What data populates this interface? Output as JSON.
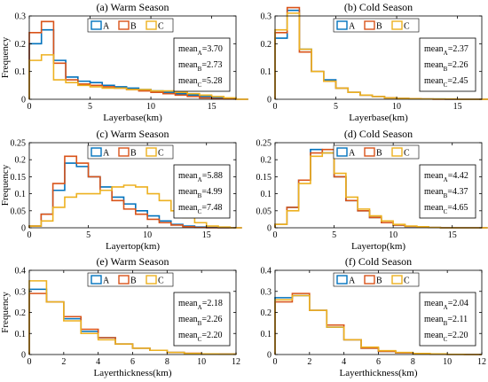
{
  "figure": {
    "background": "#ffffff"
  },
  "legend_colors": {
    "A": "#0072BD",
    "B": "#D95319",
    "C": "#EDB120"
  },
  "chart_data": [
    {
      "type": "line",
      "title": "(a) Warm Season",
      "xlabel": "Layerbase(km)",
      "ylabel": "Frequency",
      "xlim": [
        0,
        17
      ],
      "ylim": [
        0,
        0.3
      ],
      "xticks": [
        0,
        5,
        10,
        15
      ],
      "yticks": [
        0,
        0.1,
        0.2,
        0.3
      ],
      "grid": false,
      "legend_location": "top-center",
      "bin_width": 1,
      "series": [
        {
          "name": "A",
          "color": "#0072BD",
          "values": [
            0.2,
            0.25,
            0.14,
            0.08,
            0.065,
            0.06,
            0.05,
            0.045,
            0.04,
            0.035,
            0.03,
            0.025,
            0.02,
            0.015,
            0.01,
            0.005,
            0.002,
            0
          ]
        },
        {
          "name": "B",
          "color": "#D95319",
          "values": [
            0.24,
            0.28,
            0.13,
            0.07,
            0.055,
            0.05,
            0.045,
            0.04,
            0.035,
            0.03,
            0.025,
            0.02,
            0.015,
            0.01,
            0.005,
            0.002,
            0.001,
            0
          ]
        },
        {
          "name": "C",
          "color": "#EDB120",
          "values": [
            0.14,
            0.16,
            0.07,
            0.06,
            0.05,
            0.045,
            0.04,
            0.04,
            0.035,
            0.035,
            0.03,
            0.03,
            0.025,
            0.02,
            0.015,
            0.01,
            0.005,
            0
          ]
        }
      ],
      "means": {
        "A": "=3.70",
        "B": "=2.73",
        "C": "=5.28"
      }
    },
    {
      "type": "line",
      "title": "(b) Cold Season",
      "xlabel": "Layerbase(km)",
      "ylabel": "",
      "xlim": [
        0,
        17
      ],
      "ylim": [
        0,
        0.3
      ],
      "xticks": [
        0,
        5,
        10,
        15
      ],
      "yticks": [
        0,
        0.1,
        0.2,
        0.3
      ],
      "grid": false,
      "legend_location": "top-center",
      "bin_width": 1,
      "series": [
        {
          "name": "A",
          "color": "#0072BD",
          "values": [
            0.22,
            0.32,
            0.18,
            0.1,
            0.07,
            0.04,
            0.025,
            0.015,
            0.01,
            0.005,
            0.003,
            0.002,
            0.001,
            0.001,
            0,
            0,
            0,
            0
          ]
        },
        {
          "name": "B",
          "color": "#D95319",
          "values": [
            0.24,
            0.33,
            0.17,
            0.1,
            0.065,
            0.04,
            0.025,
            0.015,
            0.01,
            0.005,
            0.003,
            0.002,
            0.001,
            0,
            0,
            0,
            0,
            0
          ]
        },
        {
          "name": "C",
          "color": "#EDB120",
          "values": [
            0.25,
            0.31,
            0.18,
            0.1,
            0.065,
            0.04,
            0.025,
            0.015,
            0.01,
            0.005,
            0.003,
            0.002,
            0.001,
            0.001,
            0.001,
            0,
            0,
            0
          ]
        }
      ],
      "means": {
        "A": "=2.37",
        "B": "=2.26",
        "C": "=2.45"
      }
    },
    {
      "type": "line",
      "title": "(c) Warm Season",
      "xlabel": "Layertop(km)",
      "ylabel": "Frequency",
      "xlim": [
        0,
        17.5
      ],
      "ylim": [
        0,
        0.25
      ],
      "xticks": [
        0,
        5,
        10,
        15
      ],
      "yticks": [
        0,
        0.05,
        0.1,
        0.15,
        0.2,
        0.25
      ],
      "grid": false,
      "legend_location": "top-center",
      "bin_width": 1,
      "series": [
        {
          "name": "A",
          "color": "#0072BD",
          "values": [
            0.005,
            0.04,
            0.11,
            0.19,
            0.18,
            0.15,
            0.12,
            0.09,
            0.07,
            0.05,
            0.035,
            0.02,
            0.01,
            0.005,
            0.002,
            0.001,
            0,
            0
          ]
        },
        {
          "name": "B",
          "color": "#D95319",
          "values": [
            0.005,
            0.04,
            0.13,
            0.21,
            0.19,
            0.15,
            0.11,
            0.08,
            0.055,
            0.04,
            0.025,
            0.015,
            0.008,
            0.003,
            0.001,
            0,
            0,
            0
          ]
        },
        {
          "name": "C",
          "color": "#EDB120",
          "values": [
            0.005,
            0.02,
            0.06,
            0.09,
            0.1,
            0.1,
            0.11,
            0.12,
            0.125,
            0.12,
            0.1,
            0.08,
            0.05,
            0.03,
            0.015,
            0.005,
            0.002,
            0
          ]
        }
      ],
      "means": {
        "A": "=5.88",
        "B": "=4.99",
        "C": "=7.48"
      }
    },
    {
      "type": "line",
      "title": "(d) Cold Season",
      "xlabel": "Layertop(km)",
      "ylabel": "",
      "xlim": [
        0,
        17.5
      ],
      "ylim": [
        0,
        0.25
      ],
      "xticks": [
        0,
        5,
        10,
        15
      ],
      "yticks": [
        0,
        0.05,
        0.1,
        0.15,
        0.2,
        0.25
      ],
      "grid": false,
      "legend_location": "top-center",
      "bin_width": 1,
      "series": [
        {
          "name": "A",
          "color": "#0072BD",
          "values": [
            0.01,
            0.06,
            0.14,
            0.23,
            0.22,
            0.15,
            0.08,
            0.05,
            0.03,
            0.015,
            0.008,
            0.004,
            0.002,
            0.001,
            0,
            0,
            0,
            0
          ]
        },
        {
          "name": "B",
          "color": "#D95319",
          "values": [
            0.01,
            0.06,
            0.14,
            0.22,
            0.23,
            0.15,
            0.08,
            0.05,
            0.03,
            0.015,
            0.008,
            0.004,
            0.002,
            0.001,
            0,
            0,
            0,
            0
          ]
        },
        {
          "name": "C",
          "color": "#EDB120",
          "values": [
            0.01,
            0.05,
            0.13,
            0.21,
            0.22,
            0.16,
            0.09,
            0.055,
            0.035,
            0.02,
            0.01,
            0.005,
            0.003,
            0.001,
            0,
            0,
            0,
            0
          ]
        }
      ],
      "means": {
        "A": "=4.42",
        "B": "=4.37",
        "C": "=4.65"
      }
    },
    {
      "type": "line",
      "title": "(e) Warm Season",
      "xlabel": "Layerthickness(km)",
      "ylabel": "Frequency",
      "xlim": [
        0,
        12
      ],
      "ylim": [
        0,
        0.4
      ],
      "xticks": [
        0,
        2,
        4,
        6,
        8,
        10,
        12
      ],
      "yticks": [
        0,
        0.1,
        0.2,
        0.3,
        0.4
      ],
      "grid": false,
      "legend_location": "top-center",
      "bin_width": 1,
      "series": [
        {
          "name": "A",
          "color": "#0072BD",
          "values": [
            0.31,
            0.25,
            0.17,
            0.11,
            0.08,
            0.05,
            0.03,
            0.02,
            0.01,
            0.005,
            0.003,
            0.002
          ]
        },
        {
          "name": "B",
          "color": "#D95319",
          "values": [
            0.29,
            0.25,
            0.18,
            0.12,
            0.08,
            0.05,
            0.03,
            0.02,
            0.01,
            0.006,
            0.003,
            0.002
          ]
        },
        {
          "name": "C",
          "color": "#EDB120",
          "values": [
            0.35,
            0.25,
            0.16,
            0.1,
            0.07,
            0.05,
            0.03,
            0.02,
            0.01,
            0.005,
            0.003,
            0.002
          ]
        }
      ],
      "means": {
        "A": "=2.18",
        "B": "=2.26",
        "C": "=2.20"
      }
    },
    {
      "type": "line",
      "title": "(f) Cold Season",
      "xlabel": "Layerthickness(km)",
      "ylabel": "",
      "xlim": [
        0,
        12
      ],
      "ylim": [
        0,
        0.4
      ],
      "xticks": [
        0,
        2,
        4,
        6,
        8,
        10,
        12
      ],
      "yticks": [
        0,
        0.1,
        0.2,
        0.3,
        0.4
      ],
      "grid": false,
      "legend_location": "top-center",
      "bin_width": 1,
      "series": [
        {
          "name": "A",
          "color": "#0072BD",
          "values": [
            0.27,
            0.28,
            0.21,
            0.13,
            0.07,
            0.03,
            0.015,
            0.008,
            0.004,
            0.002,
            0.001,
            0
          ]
        },
        {
          "name": "B",
          "color": "#D95319",
          "values": [
            0.25,
            0.29,
            0.21,
            0.14,
            0.07,
            0.03,
            0.015,
            0.008,
            0.004,
            0.002,
            0.001,
            0
          ]
        },
        {
          "name": "C",
          "color": "#EDB120",
          "values": [
            0.26,
            0.28,
            0.21,
            0.13,
            0.07,
            0.035,
            0.018,
            0.01,
            0.005,
            0.003,
            0.001,
            0
          ]
        }
      ],
      "means": {
        "A": "=2.04",
        "B": "=2.11",
        "C": "=2.20"
      }
    }
  ]
}
